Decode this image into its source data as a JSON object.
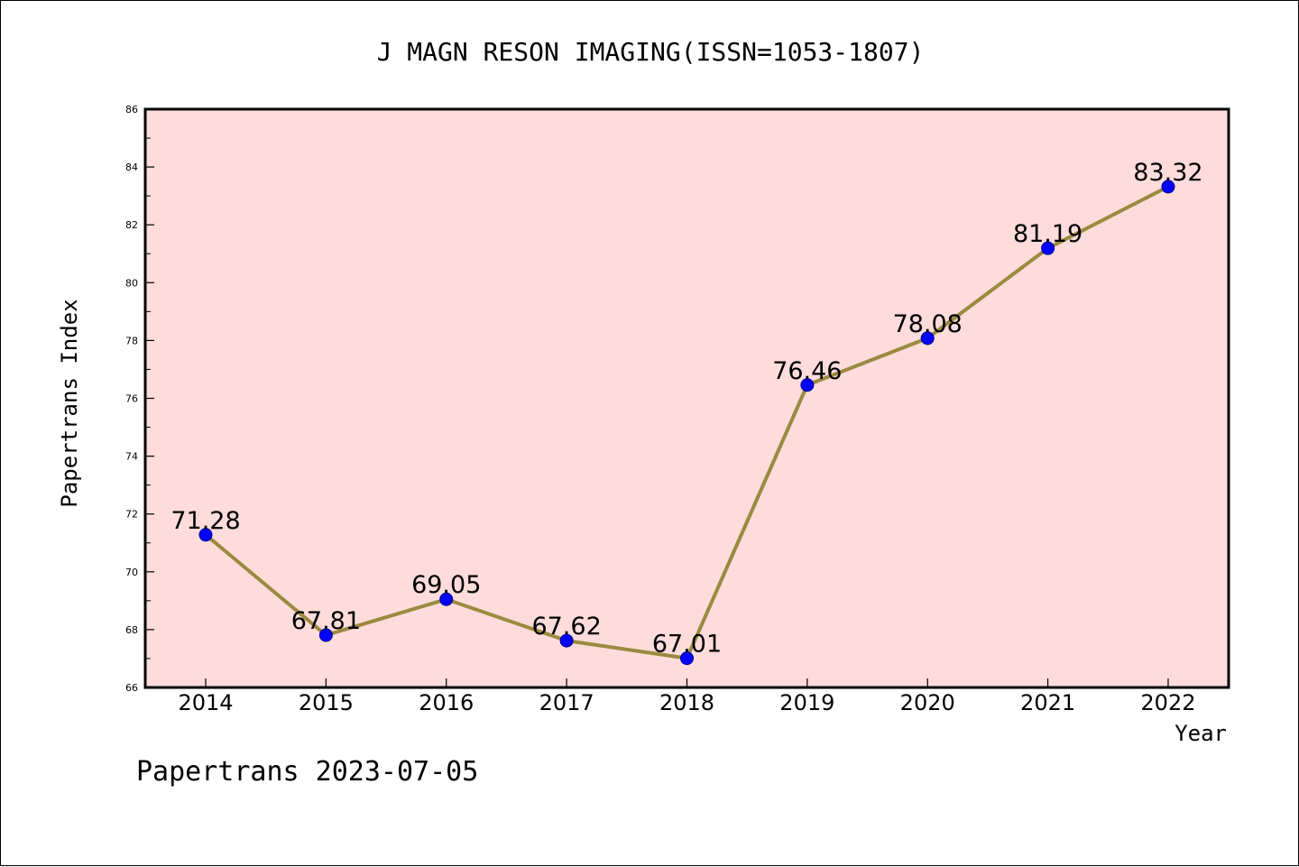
{
  "chart_data": {
    "type": "line",
    "title": "J MAGN RESON IMAGING(ISSN=1053-1807)",
    "xlabel": "Year",
    "ylabel": "Papertrans Index",
    "categories": [
      "2014",
      "2015",
      "2016",
      "2017",
      "2018",
      "2019",
      "2020",
      "2021",
      "2022"
    ],
    "series": [
      {
        "values": [
          71.28,
          67.81,
          69.05,
          67.62,
          67.01,
          76.46,
          78.08,
          81.19,
          83.32
        ],
        "labels": [
          "71.28",
          "67.81",
          "69.05",
          "67.62",
          "67.01",
          "76.46",
          "78.08",
          "81.19",
          "83.32"
        ]
      }
    ],
    "ylim": [
      66,
      86
    ],
    "yticks": [
      66,
      68,
      70,
      72,
      74,
      76,
      78,
      80,
      82,
      84,
      86
    ],
    "ytick_labels": [
      "66",
      "68",
      "70",
      "72",
      "74",
      "76",
      "78",
      "80",
      "82",
      "84",
      "86"
    ],
    "grid": false,
    "colors": {
      "line": "#9a8a3f",
      "marker": "#0000ff",
      "plot_background": "#fddcdb",
      "frame": "#000000"
    }
  },
  "footer": {
    "text": "Papertrans 2023-07-05"
  }
}
